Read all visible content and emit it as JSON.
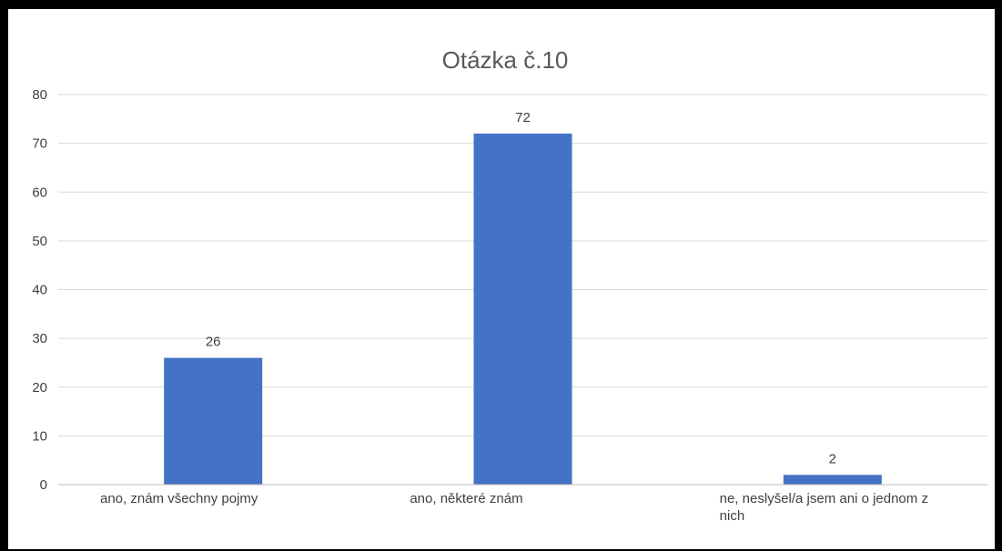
{
  "chart_data": {
    "type": "bar",
    "title": "Otázka č.10",
    "xlabel": "",
    "ylabel": "",
    "ylim": [
      0,
      80
    ],
    "yticks": [
      0,
      10,
      20,
      30,
      40,
      50,
      60,
      70,
      80
    ],
    "grid": true,
    "legend": "none",
    "categories": [
      [
        "ano, znám všechny pojmy"
      ],
      [
        "ano, některé znám"
      ],
      [
        "ne, neslyšel/a jsem ani o jednom z",
        "nich"
      ]
    ],
    "values": [
      26,
      72,
      2
    ],
    "data_labels": [
      "26",
      "72",
      "2"
    ]
  },
  "colors": {
    "bar": "#4472C4",
    "grid": "#D9D9D9",
    "axis": "#BFBFBF",
    "text": "#404040",
    "title": "#595959",
    "frame": "#000000"
  }
}
